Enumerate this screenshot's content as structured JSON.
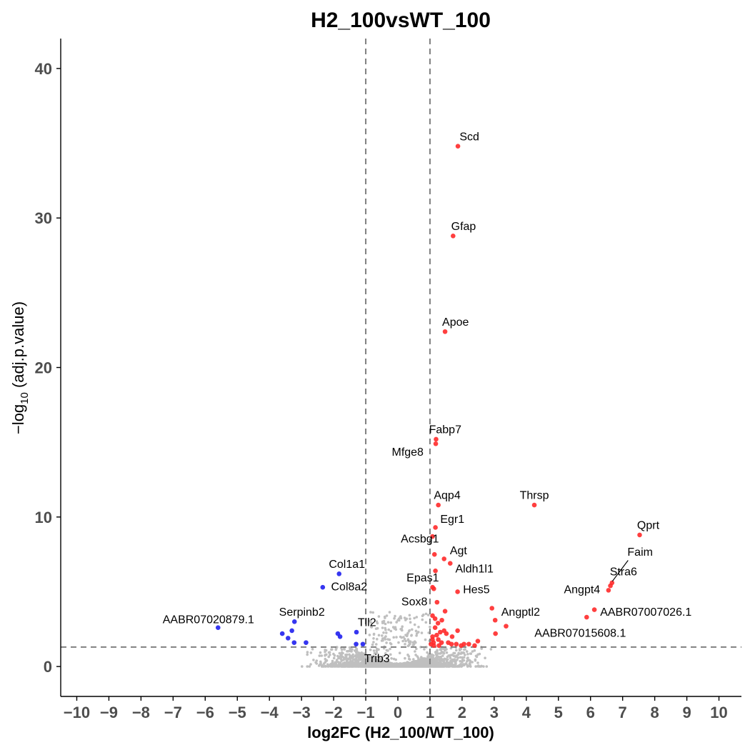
{
  "chart_data": {
    "type": "scatter",
    "title": "H2_100vsWT_100",
    "xlabel": "log2FC (H2_100/WT_100)",
    "ylabel_prefix": "−log",
    "ylabel_sub": "10",
    "ylabel_suffix": " (adj.p.value)",
    "xlim": [
      -10.5,
      10.7
    ],
    "ylim": [
      -2,
      42
    ],
    "x_ticks": [
      -10,
      -9,
      -8,
      -7,
      -6,
      -5,
      -4,
      -3,
      -2,
      -1,
      0,
      1,
      2,
      3,
      4,
      5,
      6,
      7,
      8,
      9,
      10
    ],
    "x_tick_labels": [
      "−10",
      "−9",
      "−8",
      "−7",
      "−6",
      "−5",
      "−4",
      "−3",
      "−2",
      "−1",
      "0",
      "1",
      "2",
      "3",
      "4",
      "5",
      "6",
      "7",
      "8",
      "9",
      "10"
    ],
    "y_ticks": [
      0,
      10,
      20,
      30,
      40
    ],
    "y_tick_labels": [
      "0",
      "10",
      "20",
      "30",
      "40"
    ],
    "thresholds": {
      "x": [
        -1,
        1
      ],
      "y": 1.3
    },
    "grid": false,
    "colors": {
      "up": "#ff2a2a",
      "down": "#2020ee",
      "ns": "#bfbfbf",
      "threshold": "#808080"
    },
    "series": [
      {
        "name": "Up",
        "color": "#ff2a2a",
        "points": [
          [
            1.87,
            34.8
          ],
          [
            1.72,
            28.8
          ],
          [
            1.47,
            22.4
          ],
          [
            1.19,
            15.2
          ],
          [
            1.18,
            14.9
          ],
          [
            4.25,
            10.8
          ],
          [
            1.26,
            10.8
          ],
          [
            7.53,
            8.8
          ],
          [
            1.17,
            9.3
          ],
          [
            1.08,
            8.7
          ],
          [
            1.14,
            7.5
          ],
          [
            1.44,
            7.2
          ],
          [
            1.63,
            6.9
          ],
          [
            1.17,
            6.4
          ],
          [
            6.67,
            5.6
          ],
          [
            6.62,
            5.4
          ],
          [
            6.56,
            5.1
          ],
          [
            1.86,
            5.0
          ],
          [
            1.08,
            5.3
          ],
          [
            1.12,
            5.2
          ],
          [
            1.22,
            4.3
          ],
          [
            2.93,
            3.9
          ],
          [
            1.47,
            3.7
          ],
          [
            3.37,
            2.7
          ],
          [
            6.12,
            3.8
          ],
          [
            5.88,
            3.3
          ],
          [
            3.03,
            3.1
          ],
          [
            3.04,
            2.2
          ],
          [
            1.16,
            3.2
          ],
          [
            1.08,
            3.4
          ],
          [
            1.37,
            3.1
          ],
          [
            1.25,
            2.9
          ],
          [
            1.16,
            2.6
          ],
          [
            1.44,
            2.4
          ],
          [
            1.32,
            2.3
          ],
          [
            1.51,
            2.2
          ],
          [
            1.86,
            2.4
          ],
          [
            1.69,
            2.0
          ],
          [
            1.21,
            2.1
          ],
          [
            1.08,
            2.0
          ],
          [
            1.26,
            1.8
          ],
          [
            1.11,
            1.6
          ],
          [
            1.36,
            1.6
          ],
          [
            1.57,
            1.6
          ],
          [
            1.67,
            1.5
          ],
          [
            1.82,
            1.5
          ],
          [
            2.06,
            1.5
          ],
          [
            2.21,
            1.5
          ],
          [
            2.39,
            1.4
          ],
          [
            2.49,
            1.7
          ],
          [
            1.97,
            1.4
          ],
          [
            1.12,
            1.4
          ],
          [
            1.03,
            1.5
          ],
          [
            1.08,
            1.8
          ],
          [
            1.28,
            1.4
          ]
        ]
      },
      {
        "name": "Down",
        "color": "#2020ee",
        "points": [
          [
            -5.6,
            2.6
          ],
          [
            -3.22,
            3.0
          ],
          [
            -3.6,
            2.2
          ],
          [
            -3.3,
            2.4
          ],
          [
            -3.42,
            1.9
          ],
          [
            -3.23,
            1.6
          ],
          [
            -2.86,
            1.6
          ],
          [
            -2.34,
            5.3
          ],
          [
            -1.83,
            6.2
          ],
          [
            -1.87,
            2.2
          ],
          [
            -1.8,
            2.0
          ],
          [
            -1.29,
            2.3
          ],
          [
            -1.3,
            1.5
          ],
          [
            -1.09,
            1.5
          ]
        ]
      }
    ],
    "labels": [
      {
        "text": "Scd",
        "x": 1.92,
        "y": 35.2,
        "anchor": "start"
      },
      {
        "text": "Gfap",
        "x": 1.66,
        "y": 29.2,
        "anchor": "start"
      },
      {
        "text": "Apoe",
        "x": 1.38,
        "y": 22.8,
        "anchor": "start"
      },
      {
        "text": "Fabp7",
        "x": 0.97,
        "y": 15.6,
        "anchor": "start"
      },
      {
        "text": "Mfge8",
        "x": 0.8,
        "y": 14.1,
        "anchor": "end"
      },
      {
        "text": "Aqp4",
        "x": 1.12,
        "y": 11.2,
        "anchor": "start"
      },
      {
        "text": "Thrsp",
        "x": 4.25,
        "y": 11.2,
        "anchor": "middle"
      },
      {
        "text": "Egr1",
        "x": 1.32,
        "y": 9.6,
        "anchor": "start"
      },
      {
        "text": "Qprt",
        "x": 7.45,
        "y": 9.2,
        "anchor": "start"
      },
      {
        "text": "Acsbg1",
        "x": 1.28,
        "y": 8.3,
        "anchor": "end"
      },
      {
        "text": "Agt",
        "x": 1.62,
        "y": 7.5,
        "anchor": "start"
      },
      {
        "text": "Faim",
        "x": 7.15,
        "y": 7.4,
        "anchor": "start"
      },
      {
        "text": "Aldh1l1",
        "x": 1.79,
        "y": 6.3,
        "anchor": "start"
      },
      {
        "text": "Col1a1",
        "x": -2.15,
        "y": 6.6,
        "anchor": "start"
      },
      {
        "text": "Stra6",
        "x": 6.6,
        "y": 6.1,
        "anchor": "start"
      },
      {
        "text": "Epas1",
        "x": 1.28,
        "y": 5.7,
        "anchor": "end"
      },
      {
        "text": "Col8a2",
        "x": -2.08,
        "y": 5.1,
        "anchor": "start"
      },
      {
        "text": "Hes5",
        "x": 2.03,
        "y": 4.9,
        "anchor": "start"
      },
      {
        "text": "Angpt4",
        "x": 6.3,
        "y": 4.9,
        "anchor": "end"
      },
      {
        "text": "Sox8",
        "x": 0.92,
        "y": 4.1,
        "anchor": "end"
      },
      {
        "text": "Serpinb2",
        "x": -3.7,
        "y": 3.4,
        "anchor": "start"
      },
      {
        "text": "Angptl2",
        "x": 3.22,
        "y": 3.4,
        "anchor": "start"
      },
      {
        "text": "AABR07007026.1",
        "x": 6.3,
        "y": 3.4,
        "anchor": "start"
      },
      {
        "text": "AABR07020879.1",
        "x": -5.9,
        "y": 2.9,
        "anchor": "middle"
      },
      {
        "text": "Tll2",
        "x": -1.25,
        "y": 2.7,
        "anchor": "start"
      },
      {
        "text": "AABR07015608.1",
        "x": 5.68,
        "y": 2.0,
        "anchor": "middle"
      },
      {
        "text": "Trib3",
        "x": -0.65,
        "y": 0.3,
        "anchor": "middle"
      }
    ],
    "connectors": [
      {
        "from": [
          6.68,
          5.7
        ],
        "to": [
          7.17,
          7.1
        ]
      }
    ]
  }
}
